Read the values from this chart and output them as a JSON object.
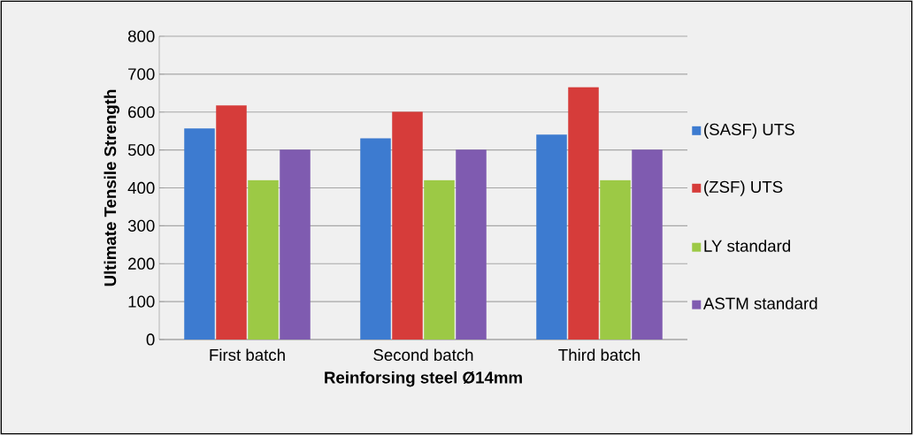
{
  "chart_data": {
    "type": "bar",
    "xlabel": "Reinforsing steel Ø14mm",
    "ylabel": "Ultimate Tensile Strength",
    "categories": [
      "First batch",
      "Second batch",
      "Third batch"
    ],
    "series": [
      {
        "name": "(SASF) UTS",
        "color": "#3d7bd0",
        "values": [
          556,
          530,
          540
        ]
      },
      {
        "name": "(ZSF) UTS",
        "color": "#d63c3a",
        "values": [
          617,
          600,
          665
        ]
      },
      {
        "name": "LY standard",
        "color": "#9cc945",
        "values": [
          420,
          420,
          420
        ]
      },
      {
        "name": "ASTM standard",
        "color": "#7f5bb0",
        "values": [
          500,
          500,
          500
        ]
      }
    ],
    "ylim": [
      0,
      800
    ],
    "yticks": [
      0,
      100,
      200,
      300,
      400,
      500,
      600,
      700,
      800
    ],
    "grid": "y",
    "legend": "right"
  }
}
